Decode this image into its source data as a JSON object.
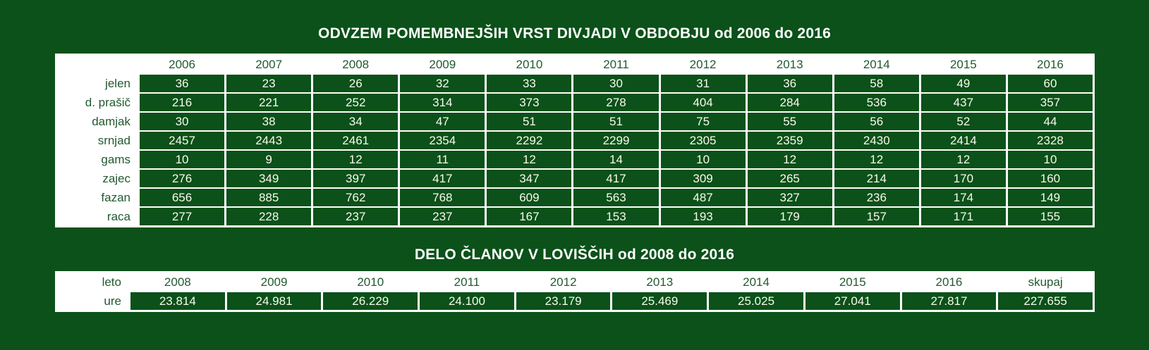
{
  "colors": {
    "background": "#0b5119",
    "panel": "#ffffff",
    "cell": "#0b5119",
    "header_text": "#215a2f",
    "value_text": "#fbf9ee",
    "title_text": "#ffffff"
  },
  "chart_data": [
    {
      "type": "table",
      "title": "ODVZEM POMEMBNEJŠIH VRST DIVJADI V OBDOBJU od 2006 do 2016",
      "categories": [
        "2006",
        "2007",
        "2008",
        "2009",
        "2010",
        "2011",
        "2012",
        "2013",
        "2014",
        "2015",
        "2016"
      ],
      "series": [
        {
          "name": "jelen",
          "values": [
            "36",
            "23",
            "26",
            "32",
            "33",
            "30",
            "31",
            "36",
            "58",
            "49",
            "60"
          ]
        },
        {
          "name": "d. prašič",
          "values": [
            "216",
            "221",
            "252",
            "314",
            "373",
            "278",
            "404",
            "284",
            "536",
            "437",
            "357"
          ]
        },
        {
          "name": "damjak",
          "values": [
            "30",
            "38",
            "34",
            "47",
            "51",
            "51",
            "75",
            "55",
            "56",
            "52",
            "44"
          ]
        },
        {
          "name": "srnjad",
          "values": [
            "2457",
            "2443",
            "2461",
            "2354",
            "2292",
            "2299",
            "2305",
            "2359",
            "2430",
            "2414",
            "2328"
          ]
        },
        {
          "name": "gams",
          "values": [
            "10",
            "9",
            "12",
            "11",
            "12",
            "14",
            "10",
            "12",
            "12",
            "12",
            "10"
          ]
        },
        {
          "name": "zajec",
          "values": [
            "276",
            "349",
            "397",
            "417",
            "347",
            "417",
            "309",
            "265",
            "214",
            "170",
            "160"
          ]
        },
        {
          "name": "fazan",
          "values": [
            "656",
            "885",
            "762",
            "768",
            "609",
            "563",
            "487",
            "327",
            "236",
            "174",
            "149"
          ]
        },
        {
          "name": "raca",
          "values": [
            "277",
            "228",
            "237",
            "237",
            "167",
            "153",
            "193",
            "179",
            "157",
            "171",
            "155"
          ]
        }
      ]
    },
    {
      "type": "table",
      "title": "DELO ČLANOV V LOVIŠČIH od 2008 do 2016",
      "categories_label": "leto",
      "categories": [
        "2008",
        "2009",
        "2010",
        "2011",
        "2012",
        "2013",
        "2014",
        "2015",
        "2016",
        "skupaj"
      ],
      "series": [
        {
          "name": "ure",
          "values": [
            "23.814",
            "24.981",
            "26.229",
            "24.100",
            "23.179",
            "25.469",
            "25.025",
            "27.041",
            "27.817",
            "227.655"
          ]
        }
      ]
    }
  ]
}
